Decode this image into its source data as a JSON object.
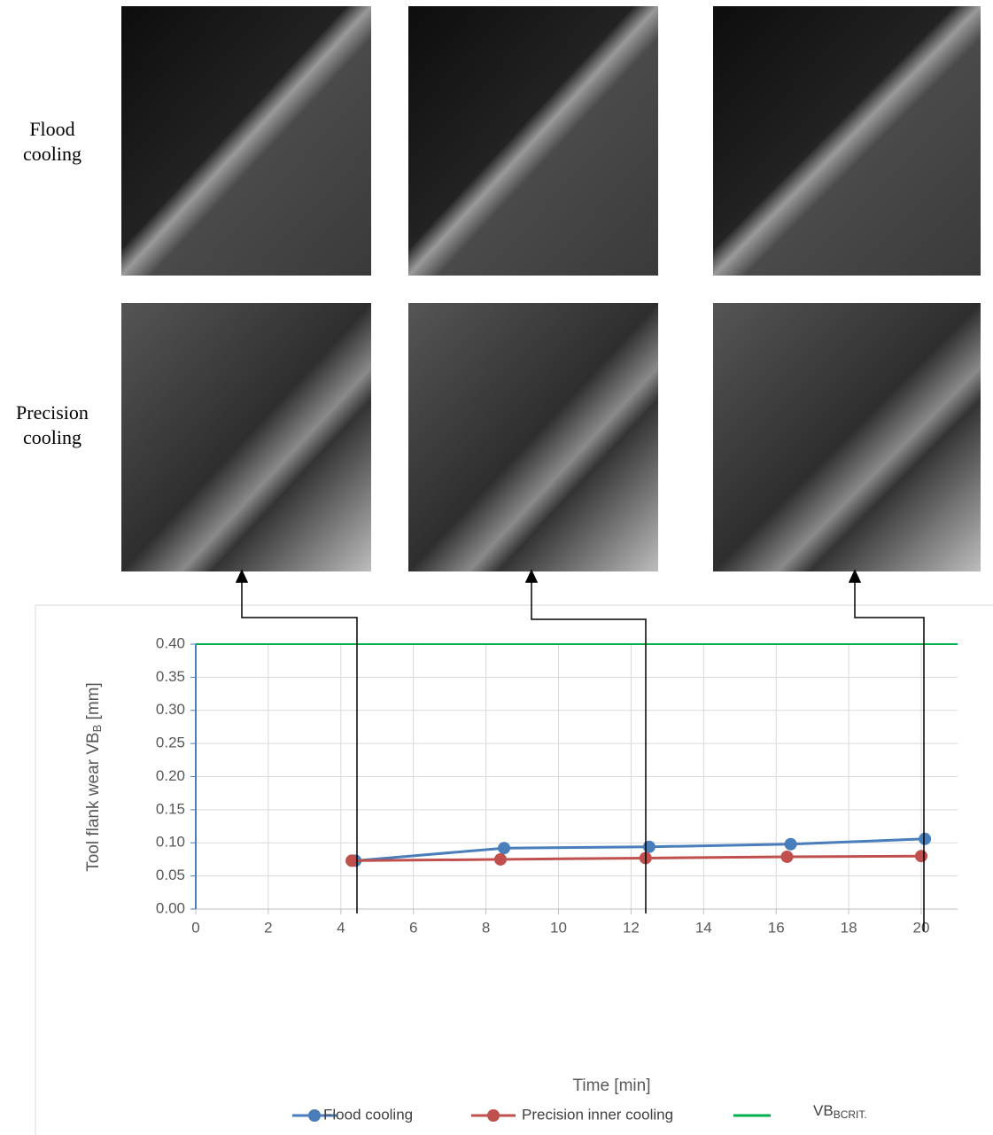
{
  "row_labels": [
    "Flood cooling",
    "Precision cooling"
  ],
  "chart_data": {
    "type": "line",
    "xlabel": "Time [min]",
    "ylabel": {
      "text": "Tool flank wear VB",
      "sub": "B",
      "suffix": " [mm]"
    },
    "xlim": [
      0,
      21
    ],
    "ylim": [
      0,
      0.4
    ],
    "xticks": [
      0,
      2,
      4,
      6,
      8,
      10,
      12,
      14,
      16,
      18,
      20
    ],
    "yticks": [
      {
        "value": 0,
        "label": "0.00"
      },
      {
        "value": 0.05,
        "label": "0.05"
      },
      {
        "value": 0.1,
        "label": "0.10"
      },
      {
        "value": 0.15,
        "label": "0.15"
      },
      {
        "value": 0.2,
        "label": "0.20"
      },
      {
        "value": 0.25,
        "label": "0.25"
      },
      {
        "value": 0.3,
        "label": "0.30"
      },
      {
        "value": 0.35,
        "label": "0.35"
      },
      {
        "value": 0.4,
        "label": "0.40"
      }
    ],
    "grid": true,
    "series": [
      {
        "name": "Flood cooling",
        "color": "#4a7ebb",
        "x": [
          4.4,
          8.5,
          12.5,
          16.4,
          20.1
        ],
        "values": [
          0.073,
          0.092,
          0.094,
          0.098,
          0.106
        ]
      },
      {
        "name": "Precision inner cooling",
        "color": "#c0504d",
        "x": [
          4.3,
          8.4,
          12.4,
          16.3,
          20.0
        ],
        "values": [
          0.073,
          0.075,
          0.077,
          0.079,
          0.08
        ]
      }
    ],
    "reference_line": {
      "name": "VB",
      "name_sub": "BCRIT.",
      "value": 0.4,
      "color": "#00b050"
    },
    "legend": "bottom"
  }
}
